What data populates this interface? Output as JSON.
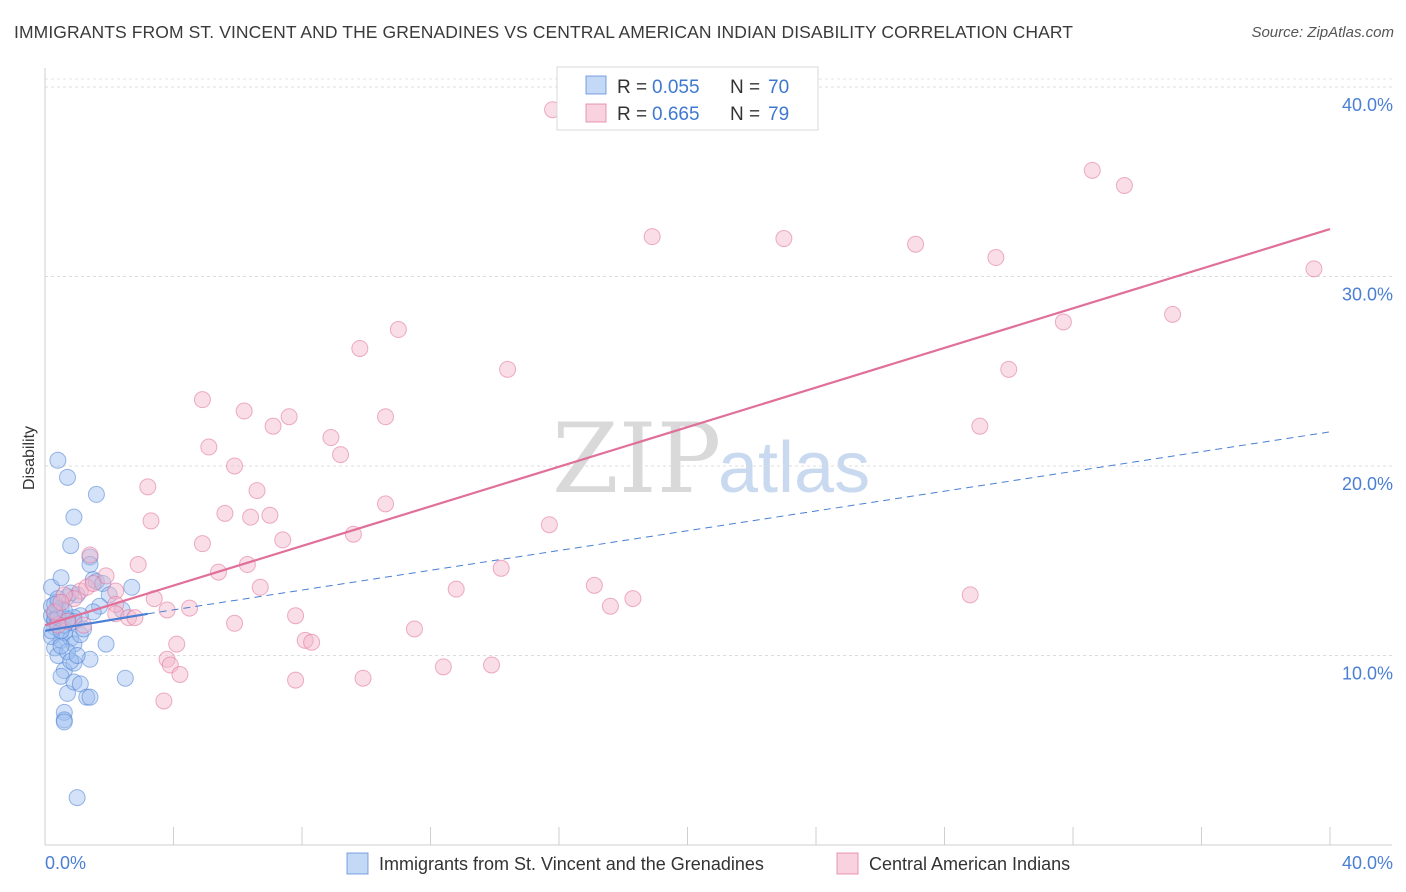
{
  "title": "IMMIGRANTS FROM ST. VINCENT AND THE GRENADINES VS CENTRAL AMERICAN INDIAN DISABILITY CORRELATION CHART",
  "source": "Source: ZipAtlas.com",
  "watermark": {
    "zip": "ZIP",
    "atlas": "atlas"
  },
  "stats": [
    {
      "r_label": "R =",
      "r": "0.055",
      "n_label": "N =",
      "n": "70",
      "color": "#9dbff0"
    },
    {
      "r_label": "R =",
      "r": "0.665",
      "n_label": "N =",
      "n": "79",
      "color": "#f4b6ca"
    }
  ],
  "legend": [
    {
      "label": "Immigrants from St. Vincent and the Grenadines",
      "color": "#9dbff0"
    },
    {
      "label": "Central American Indians",
      "color": "#f4b6ca"
    }
  ],
  "chart_data": {
    "type": "scatter",
    "title": "IMMIGRANTS FROM ST. VINCENT AND THE GRENADINES VS CENTRAL AMERICAN INDIAN DISABILITY CORRELATION CHART",
    "xlabel": "",
    "ylabel": "Disability",
    "xlim": [
      0,
      40
    ],
    "ylim": [
      0,
      41
    ],
    "x_tick_labels": [
      "0.0%",
      "40.0%"
    ],
    "y_ticks": [
      10,
      20,
      30,
      40
    ],
    "y_tick_labels": [
      "10.0%",
      "20.0%",
      "30.0%",
      "40.0%"
    ],
    "grid": true,
    "series": [
      {
        "name": "Immigrants from St. Vincent and the Grenadines",
        "color": "#4a7fd4",
        "fill": "#9dbff0",
        "trend": {
          "x": [
            0.0,
            3.2
          ],
          "y": [
            11.3,
            12.2
          ],
          "extended_x": [
            3.2,
            40.0
          ],
          "extended_y": [
            12.2,
            21.8
          ]
        },
        "points": [
          [
            0.2,
            12.1
          ],
          [
            0.3,
            11.8
          ],
          [
            0.2,
            12.6
          ],
          [
            0.4,
            12.3
          ],
          [
            0.5,
            11.9
          ],
          [
            0.3,
            11.5
          ],
          [
            0.6,
            12.0
          ],
          [
            0.4,
            12.8
          ],
          [
            0.2,
            13.6
          ],
          [
            0.5,
            14.1
          ],
          [
            0.7,
            13.1
          ],
          [
            0.3,
            10.4
          ],
          [
            0.5,
            10.8
          ],
          [
            0.6,
            11.2
          ],
          [
            0.8,
            10.9
          ],
          [
            0.4,
            10.0
          ],
          [
            0.6,
            9.2
          ],
          [
            0.9,
            9.6
          ],
          [
            0.5,
            8.9
          ],
          [
            0.7,
            8.0
          ],
          [
            0.9,
            8.6
          ],
          [
            1.1,
            8.5
          ],
          [
            1.3,
            7.8
          ],
          [
            1.4,
            7.8
          ],
          [
            0.6,
            7.0
          ],
          [
            0.6,
            6.6
          ],
          [
            0.6,
            6.5
          ],
          [
            1.0,
            2.5
          ],
          [
            0.4,
            20.3
          ],
          [
            0.7,
            19.4
          ],
          [
            1.6,
            18.5
          ],
          [
            0.9,
            17.3
          ],
          [
            0.8,
            15.8
          ],
          [
            1.4,
            15.2
          ],
          [
            1.4,
            14.8
          ],
          [
            1.5,
            14.0
          ],
          [
            1.6,
            13.9
          ],
          [
            1.8,
            13.8
          ],
          [
            2.0,
            13.2
          ],
          [
            1.7,
            12.6
          ],
          [
            1.5,
            12.3
          ],
          [
            2.4,
            12.4
          ],
          [
            2.7,
            13.6
          ],
          [
            1.1,
            12.1
          ],
          [
            1.0,
            13.2
          ],
          [
            0.9,
            10.6
          ],
          [
            1.1,
            11.1
          ],
          [
            1.9,
            10.6
          ],
          [
            1.4,
            9.8
          ],
          [
            2.5,
            8.8
          ],
          [
            0.9,
            11.8
          ],
          [
            0.5,
            12.5
          ],
          [
            0.2,
            11.0
          ],
          [
            0.3,
            12.2
          ],
          [
            0.6,
            11.6
          ],
          [
            0.7,
            10.2
          ],
          [
            0.8,
            9.7
          ],
          [
            0.4,
            13.0
          ],
          [
            0.3,
            11.9
          ],
          [
            0.2,
            11.3
          ],
          [
            0.5,
            10.5
          ],
          [
            0.9,
            12.0
          ],
          [
            1.2,
            11.4
          ],
          [
            0.7,
            11.9
          ],
          [
            0.4,
            12.0
          ],
          [
            0.6,
            12.4
          ],
          [
            1.0,
            10.0
          ],
          [
            0.3,
            12.7
          ],
          [
            0.8,
            13.3
          ],
          [
            0.5,
            11.3
          ]
        ]
      },
      {
        "name": "Central American Indians",
        "color": "#e0709a",
        "fill": "#f4b6ca",
        "trend": {
          "x": [
            0.0,
            40.0
          ],
          "y": [
            11.6,
            32.5
          ]
        },
        "points": [
          [
            15.8,
            38.8
          ],
          [
            32.6,
            35.6
          ],
          [
            33.6,
            34.8
          ],
          [
            18.9,
            32.1
          ],
          [
            23.0,
            32.0
          ],
          [
            27.1,
            31.7
          ],
          [
            29.6,
            31.0
          ],
          [
            39.5,
            30.4
          ],
          [
            11.0,
            27.2
          ],
          [
            31.7,
            27.6
          ],
          [
            35.1,
            28.0
          ],
          [
            9.8,
            26.2
          ],
          [
            14.4,
            25.1
          ],
          [
            30.0,
            25.1
          ],
          [
            4.9,
            23.5
          ],
          [
            6.2,
            22.9
          ],
          [
            7.6,
            22.6
          ],
          [
            7.1,
            22.1
          ],
          [
            10.6,
            22.6
          ],
          [
            8.9,
            21.5
          ],
          [
            9.2,
            20.6
          ],
          [
            29.1,
            22.1
          ],
          [
            5.1,
            21.0
          ],
          [
            5.9,
            20.0
          ],
          [
            3.2,
            18.9
          ],
          [
            6.6,
            18.7
          ],
          [
            10.6,
            18.0
          ],
          [
            5.6,
            17.5
          ],
          [
            6.4,
            17.3
          ],
          [
            7.0,
            17.4
          ],
          [
            3.3,
            17.1
          ],
          [
            15.7,
            16.9
          ],
          [
            9.6,
            16.4
          ],
          [
            4.9,
            15.9
          ],
          [
            7.4,
            16.1
          ],
          [
            2.9,
            14.8
          ],
          [
            6.3,
            14.8
          ],
          [
            1.4,
            15.3
          ],
          [
            1.9,
            14.2
          ],
          [
            5.4,
            14.4
          ],
          [
            14.2,
            14.6
          ],
          [
            6.7,
            13.6
          ],
          [
            12.8,
            13.5
          ],
          [
            17.1,
            13.7
          ],
          [
            2.2,
            13.4
          ],
          [
            1.1,
            13.4
          ],
          [
            1.3,
            13.6
          ],
          [
            0.9,
            13.0
          ],
          [
            0.6,
            13.2
          ],
          [
            2.2,
            12.7
          ],
          [
            3.4,
            13.0
          ],
          [
            3.8,
            12.4
          ],
          [
            4.5,
            12.5
          ],
          [
            17.6,
            12.6
          ],
          [
            18.3,
            13.0
          ],
          [
            28.8,
            13.2
          ],
          [
            2.2,
            12.2
          ],
          [
            2.6,
            12.0
          ],
          [
            5.9,
            11.7
          ],
          [
            7.8,
            12.1
          ],
          [
            11.5,
            11.4
          ],
          [
            0.7,
            11.8
          ],
          [
            0.4,
            11.6
          ],
          [
            0.3,
            12.3
          ],
          [
            4.1,
            10.6
          ],
          [
            8.1,
            10.8
          ],
          [
            8.3,
            10.7
          ],
          [
            3.8,
            9.8
          ],
          [
            3.9,
            9.5
          ],
          [
            4.2,
            9.0
          ],
          [
            12.4,
            9.4
          ],
          [
            13.9,
            9.5
          ],
          [
            7.8,
            8.7
          ],
          [
            9.9,
            8.8
          ],
          [
            3.7,
            7.6
          ],
          [
            1.2,
            11.6
          ],
          [
            0.5,
            12.8
          ],
          [
            2.8,
            12.0
          ],
          [
            1.5,
            13.8
          ]
        ]
      }
    ]
  }
}
